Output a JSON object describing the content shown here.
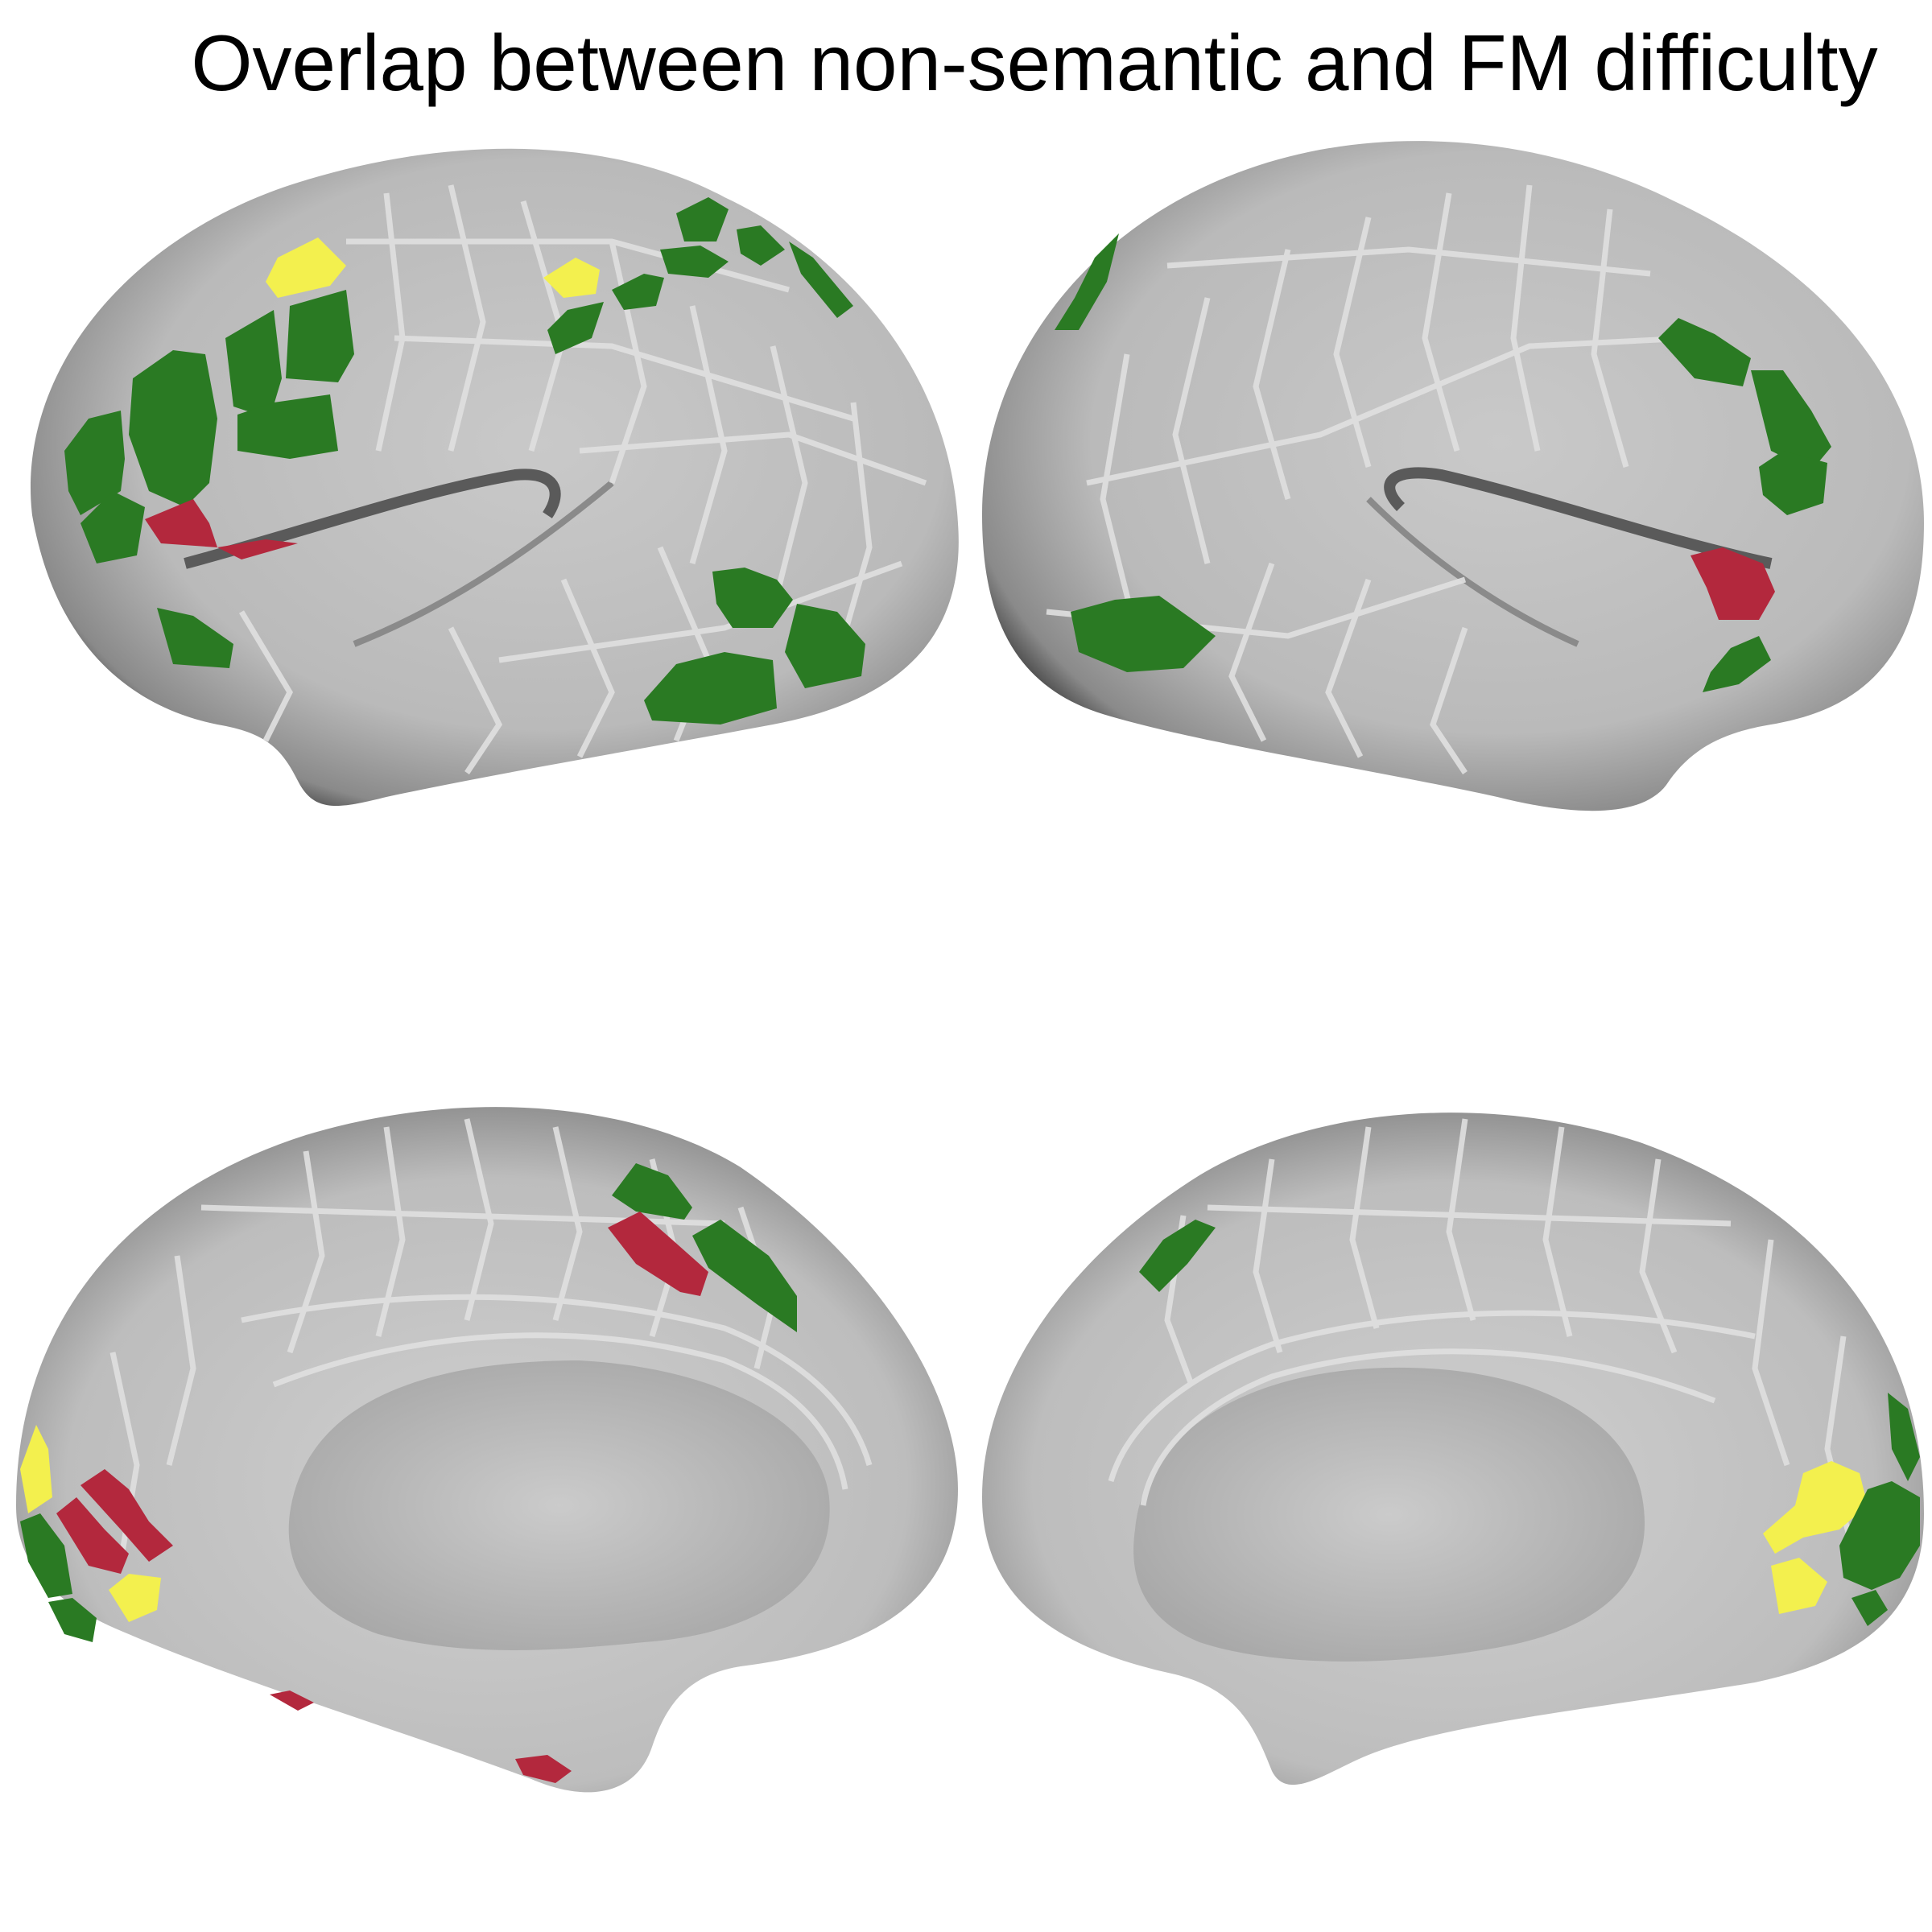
{
  "figure": {
    "title": "Overlap between non-semantic and FM difficulty",
    "colors": {
      "background": "#ffffff",
      "surface": "#bdbdbd",
      "parcel_border": "#e3e3e3",
      "green": "#2a7a23",
      "yellow": "#f3f04e",
      "red": "#b3283d"
    },
    "views": [
      {
        "name": "left-lateral"
      },
      {
        "name": "right-lateral"
      },
      {
        "name": "left-medial"
      },
      {
        "name": "right-medial"
      }
    ]
  }
}
